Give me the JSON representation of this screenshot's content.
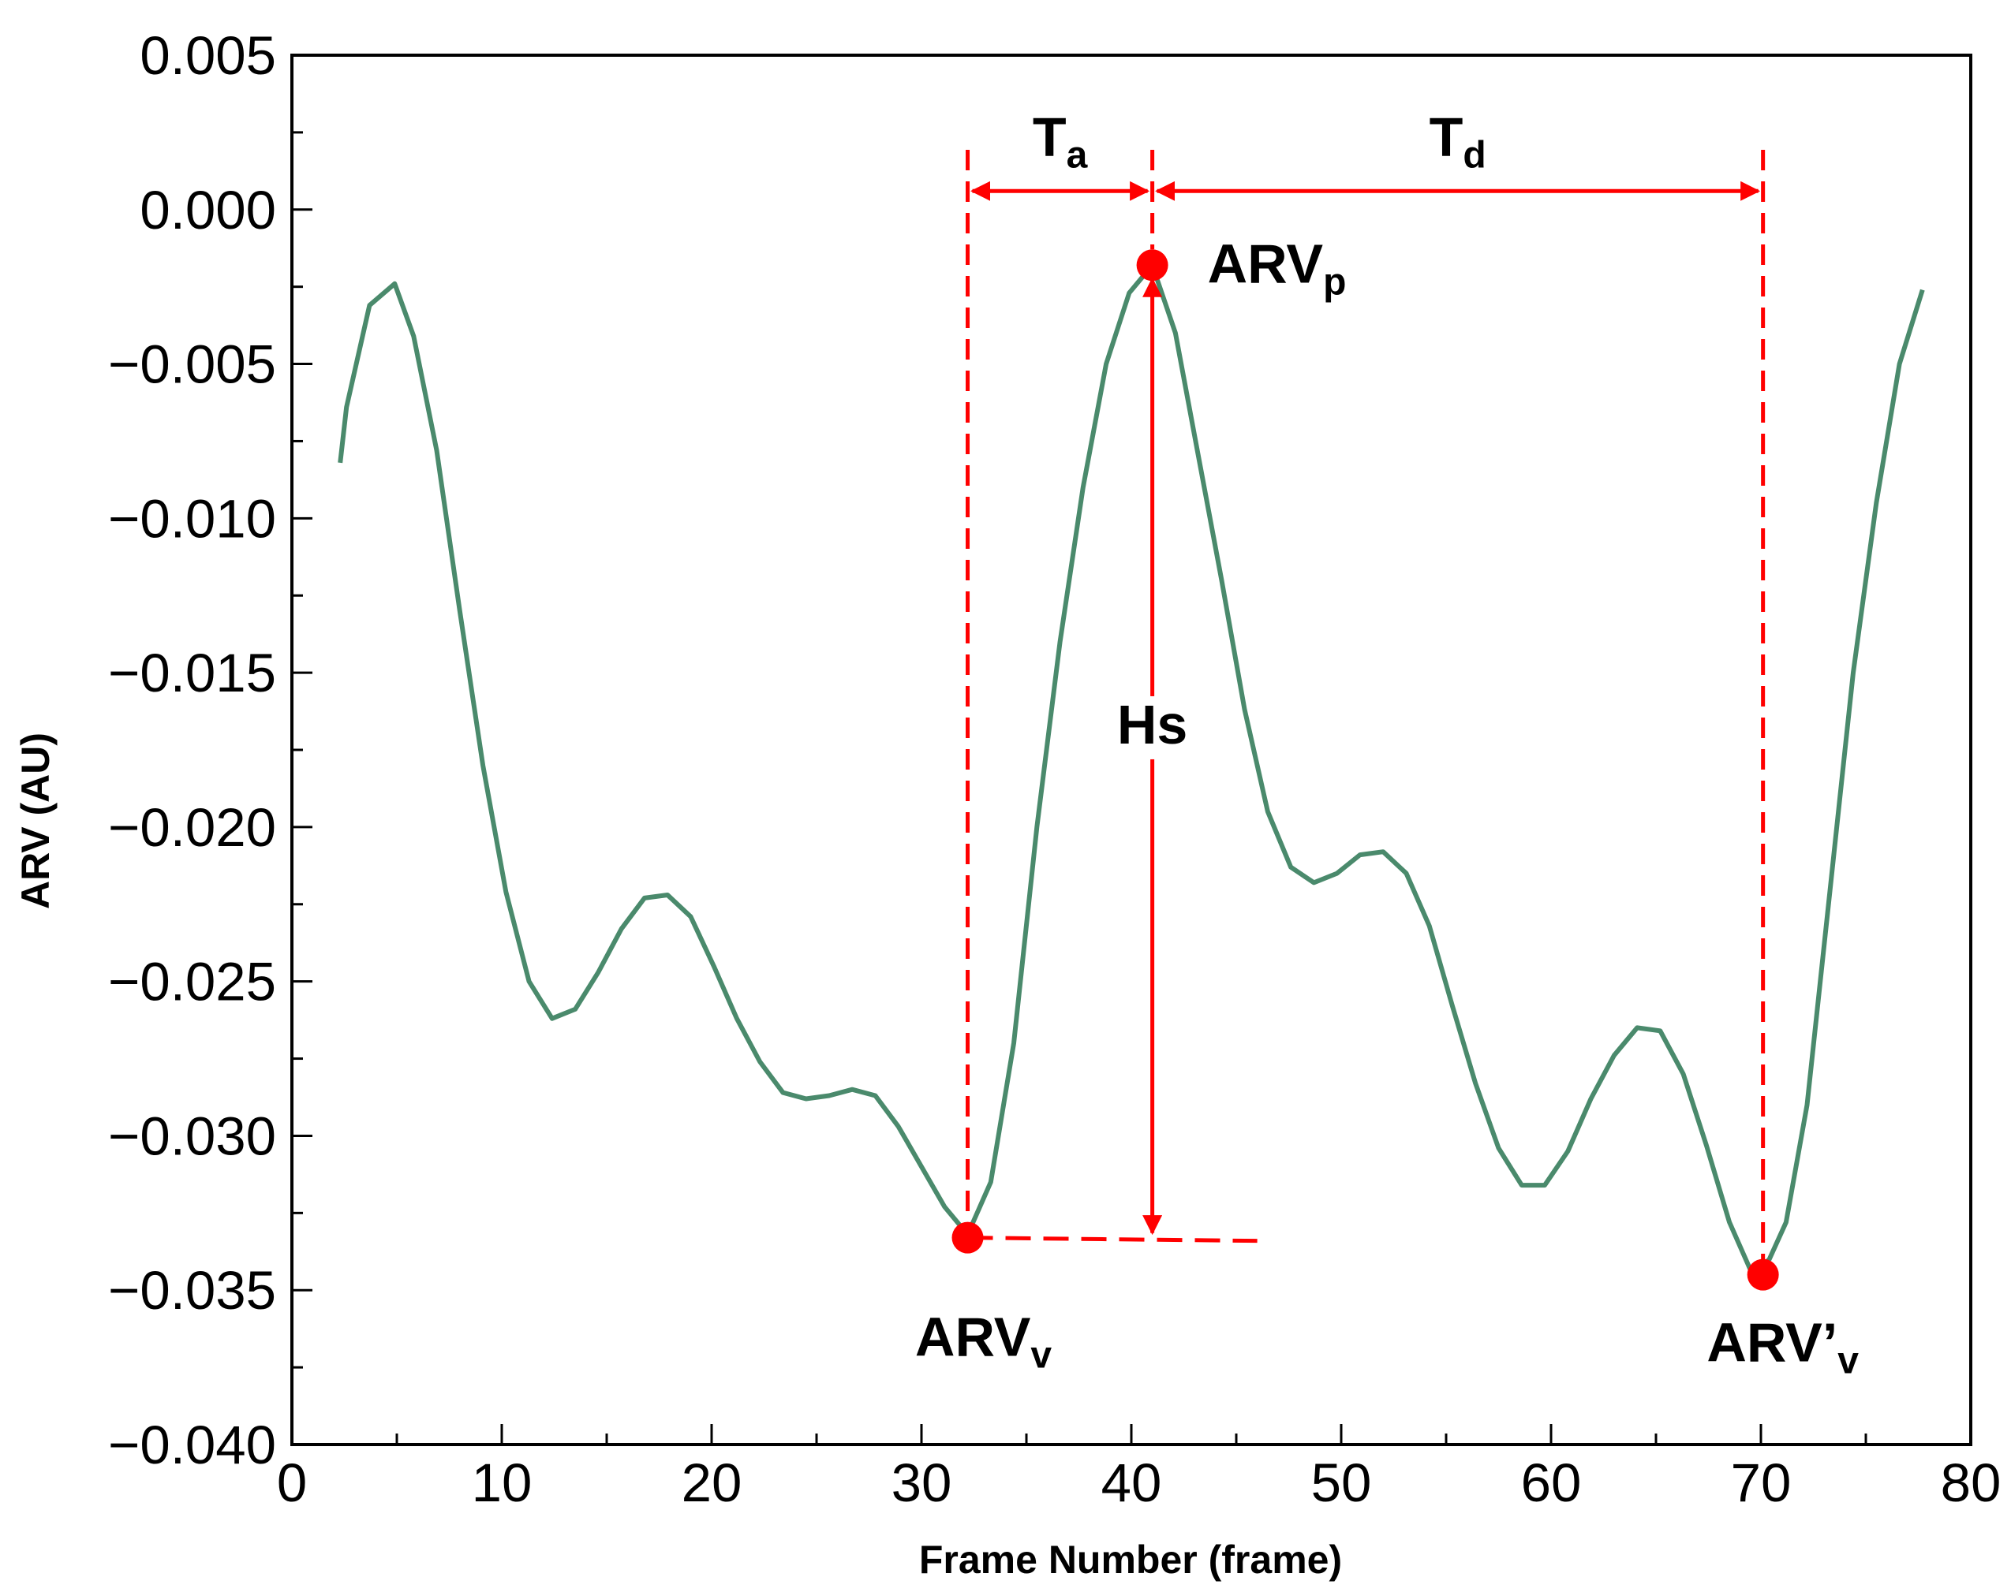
{
  "chart_data": {
    "type": "line",
    "title": "",
    "xlabel": "Frame Number (frame)",
    "ylabel": "ARV (AU)",
    "xlim": [
      0,
      80
    ],
    "ylim": [
      -0.04,
      0.005
    ],
    "x_ticks": [
      0,
      10,
      20,
      30,
      40,
      50,
      60,
      70,
      80
    ],
    "x_tick_labels": [
      "0",
      "10",
      "20",
      "30",
      "40",
      "50",
      "60",
      "70",
      "80"
    ],
    "y_ticks": [
      0.005,
      0.0,
      -0.005,
      -0.01,
      -0.015,
      -0.02,
      -0.025,
      -0.03,
      -0.035,
      -0.04
    ],
    "y_tick_labels": [
      "0.005",
      "0.000",
      "−0.005",
      "−0.010",
      "−0.015",
      "−0.020",
      "−0.025",
      "−0.030",
      "−0.035",
      "−0.040"
    ],
    "grid": false,
    "series": [
      {
        "name": "ARV",
        "color": "#4a8a6c",
        "x": [
          2.3,
          2.6,
          3.7,
          4.9,
          5.8,
          6.9,
          8.0,
          9.1,
          10.2,
          11.3,
          12.4,
          13.5,
          14.6,
          15.7,
          16.8,
          17.9,
          19.0,
          20.1,
          21.2,
          22.3,
          23.4,
          24.5,
          25.6,
          26.7,
          27.8,
          28.9,
          30.0,
          31.1,
          32.2,
          33.3,
          34.4,
          35.5,
          36.6,
          37.7,
          38.8,
          39.9,
          41.0,
          42.1,
          43.2,
          44.3,
          45.4,
          46.5,
          47.6,
          48.7,
          49.8,
          50.9,
          52.0,
          53.1,
          54.2,
          55.3,
          56.4,
          57.5,
          58.6,
          59.7,
          60.8,
          61.9,
          63.0,
          64.1,
          65.2,
          66.3,
          67.4,
          68.5,
          69.6,
          70.4,
          71.2,
          72.2,
          73.3,
          74.4,
          75.5,
          76.6,
          77.7
        ],
        "values": [
          -0.0082,
          -0.0064,
          -0.0031,
          -0.0024,
          -0.0041,
          -0.0078,
          -0.013,
          -0.018,
          -0.0221,
          -0.025,
          -0.0262,
          -0.0259,
          -0.0247,
          -0.0233,
          -0.0223,
          -0.0222,
          -0.0229,
          -0.0245,
          -0.0262,
          -0.0276,
          -0.0286,
          -0.0288,
          -0.0287,
          -0.0285,
          -0.0287,
          -0.0297,
          -0.031,
          -0.0323,
          -0.0332,
          -0.0315,
          -0.027,
          -0.02,
          -0.014,
          -0.009,
          -0.005,
          -0.0027,
          -0.0018,
          -0.004,
          -0.008,
          -0.012,
          -0.0162,
          -0.0195,
          -0.0213,
          -0.0218,
          -0.0215,
          -0.0209,
          -0.0208,
          -0.0215,
          -0.0232,
          -0.0258,
          -0.0283,
          -0.0304,
          -0.0316,
          -0.0316,
          -0.0305,
          -0.0288,
          -0.0274,
          -0.0265,
          -0.0266,
          -0.028,
          -0.0303,
          -0.0328,
          -0.0345,
          -0.034,
          -0.0328,
          -0.029,
          -0.022,
          -0.015,
          -0.0095,
          -0.005,
          -0.0026
        ]
      }
    ],
    "annotations": {
      "color": "#ff0000",
      "valley_point": {
        "x": 32.2,
        "y": -0.0333,
        "label": "ARV",
        "sub": "v"
      },
      "peak_point": {
        "x": 41.0,
        "y": -0.0018,
        "label": "ARV",
        "sub": "p"
      },
      "second_valley_point": {
        "x": 70.1,
        "y": -0.0345,
        "label": "ARV’",
        "sub": "v"
      },
      "ta": {
        "from": 32.2,
        "to": 41.0,
        "y": 0.0006,
        "label": "T",
        "sub": "a"
      },
      "td": {
        "from": 41.0,
        "to": 70.1,
        "y": 0.0006,
        "label": "T",
        "sub": "d"
      },
      "hs": {
        "x": 41.0,
        "top": -0.0018,
        "bottom": -0.0333,
        "label": "Hs"
      },
      "baseline": {
        "from": 32.2,
        "to": 46.0,
        "y": -0.0333
      }
    }
  }
}
